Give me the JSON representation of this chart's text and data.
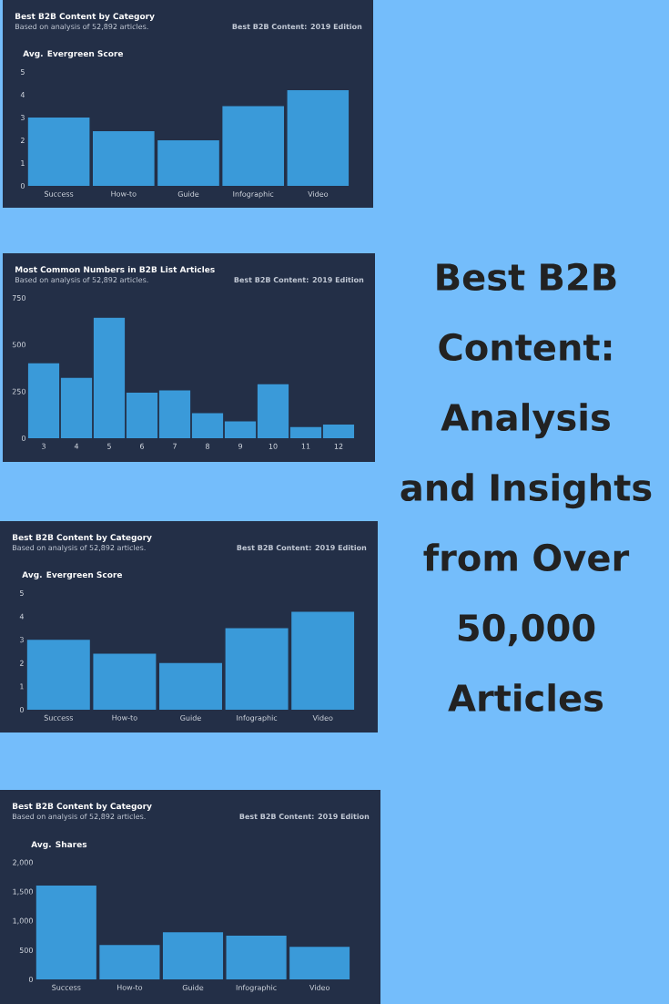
{
  "chart_data": [
    {
      "type": "bar",
      "title": "Best B2B Content by Category",
      "subtitle": "Based on analysis of 52,892 articles.",
      "ylabel": "Avg. Evergreen Score",
      "annotations": [
        "Best B2B Content: 2019 Edition"
      ],
      "categories": [
        "Success",
        "How-to",
        "Guide",
        "Infographic",
        "Video"
      ],
      "values": [
        3.0,
        2.4,
        2.0,
        3.5,
        4.2
      ],
      "color": "#3a9ad9",
      "ylim": [
        0,
        5
      ],
      "yticks": [
        0,
        1,
        2,
        3,
        4,
        5
      ]
    },
    {
      "type": "bar",
      "title": "Most Common Numbers in B2B List Articles",
      "subtitle": "Based on analysis of 52,892 articles.",
      "annotations": [
        "Best B2B Content: 2019 Edition"
      ],
      "categories": [
        "3",
        "4",
        "5",
        "6",
        "7",
        "8",
        "9",
        "10",
        "11",
        "12"
      ],
      "values": [
        400,
        323,
        644,
        244,
        256,
        134,
        90,
        289,
        60,
        73
      ],
      "color": "#3a9ad9",
      "ylim": [
        0,
        750
      ],
      "yticks": [
        0,
        250,
        500,
        750
      ]
    },
    {
      "type": "bar",
      "title": "Best B2B Content by Category",
      "subtitle": "Based on analysis of 52,892 articles.",
      "ylabel": "Avg. Evergreen Score",
      "annotations": [
        "Best B2B Content: 2019 Edition"
      ],
      "categories": [
        "Success",
        "How-to",
        "Guide",
        "Infographic",
        "Video"
      ],
      "values": [
        3.0,
        2.4,
        2.0,
        3.5,
        4.2
      ],
      "color": "#3a9ad9",
      "ylim": [
        0,
        5
      ],
      "yticks": [
        0,
        1,
        2,
        3,
        4,
        5
      ]
    },
    {
      "type": "bar",
      "title": "Best B2B Content by Category",
      "subtitle": "Based on analysis of 52,892 articles.",
      "ylabel": "Avg. Shares",
      "annotations": [
        "Best B2B Content: 2019 Edition"
      ],
      "categories": [
        "Success",
        "How-to",
        "Guide",
        "Infographic",
        "Video"
      ],
      "values": [
        1610,
        590,
        810,
        750,
        560
      ],
      "color": "#3a9ad9",
      "ylim": [
        0,
        2000
      ],
      "yticks": [
        0,
        {
          "value": 500,
          "label": "500"
        },
        {
          "value": 1000,
          "label": "1,000"
        },
        {
          "value": 1500,
          "label": "1,500"
        },
        {
          "value": 2000,
          "label": "2,000"
        }
      ]
    },
    {
      "type": "other",
      "title": "Best B2B Content: Analysis and Insights from Over 50,000 Articles"
    }
  ]
}
